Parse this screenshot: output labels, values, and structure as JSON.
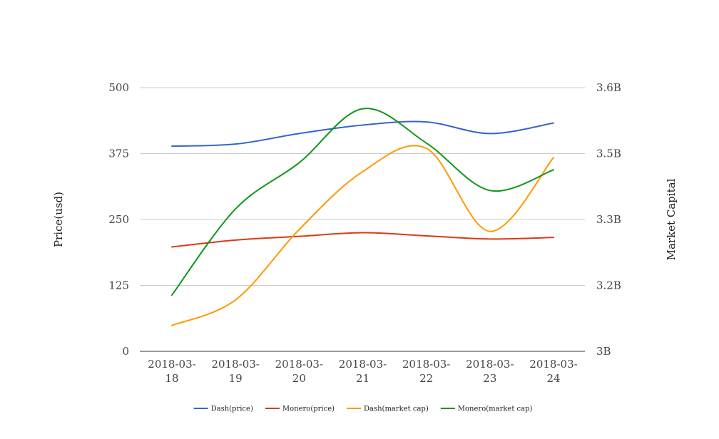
{
  "chart_data": {
    "type": "line",
    "categories": [
      "2018-03-18",
      "2018-03-19",
      "2018-03-20",
      "2018-03-21",
      "2018-03-22",
      "2018-03-23",
      "2018-03-24"
    ],
    "x_tick_labels": [
      [
        "2018-03-",
        "18"
      ],
      [
        "2018-03-",
        "19"
      ],
      [
        "2018-03-",
        "20"
      ],
      [
        "2018-03-",
        "21"
      ],
      [
        "2018-03-",
        "22"
      ],
      [
        "2018-03-",
        "23"
      ],
      [
        "2018-03-",
        "24"
      ]
    ],
    "ylabel": "Price(usd)",
    "y2label": "Market Capital",
    "ylim": [
      0,
      500
    ],
    "y_ticks": [
      0,
      125,
      250,
      375,
      500
    ],
    "y_tick_labels": [
      "0",
      "125",
      "250",
      "375",
      "500"
    ],
    "y2lim": [
      3.0,
      3.6
    ],
    "y2_ticks": [
      3.0,
      3.15,
      3.3,
      3.45,
      3.6
    ],
    "y2_tick_labels": [
      "3B",
      "3.2B",
      "3.3B",
      "3.5B",
      "3.6B"
    ],
    "grid": true,
    "legend_position": "bottom",
    "series": [
      {
        "name": "Dash(price)",
        "axis": "left",
        "color": "#3366cc",
        "values": [
          389,
          393,
          413,
          429,
          435,
          413,
          433
        ]
      },
      {
        "name": "Monero(price)",
        "axis": "left",
        "color": "#dc3912",
        "values": [
          198,
          211,
          218,
          225,
          219,
          213,
          216
        ]
      },
      {
        "name": "Dash(market cap)",
        "axis": "right",
        "color": "#ff9900",
        "values": [
          3.059,
          3.117,
          3.277,
          3.409,
          3.462,
          3.273,
          3.441
        ]
      },
      {
        "name": "Monero(market cap)",
        "axis": "right",
        "color": "#109618",
        "values": [
          3.128,
          3.324,
          3.429,
          3.552,
          3.474,
          3.366,
          3.413
        ]
      }
    ]
  }
}
